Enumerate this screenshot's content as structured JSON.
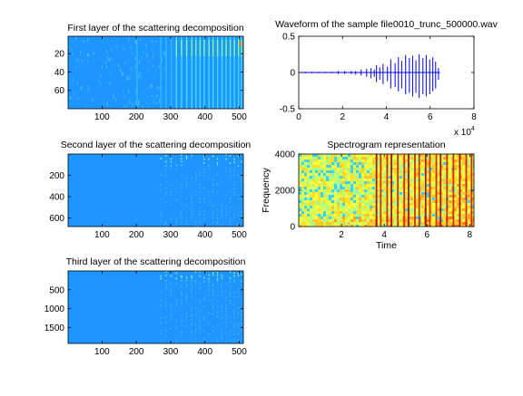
{
  "figure": {
    "background": "#ffffff"
  },
  "chart_data": [
    {
      "type": "heatmap",
      "title": "First layer of the scattering decomposition",
      "xticks": [
        "100",
        "200",
        "300",
        "400",
        "500"
      ],
      "yticks": [
        "20",
        "40",
        "60"
      ],
      "xlim": [
        1,
        512
      ],
      "ylim": [
        1,
        80
      ],
      "y_reversed": true,
      "base_color": "#1e96ff",
      "description_colors": [
        "#1e96ff",
        "#50e0ff",
        "#a0ff60",
        "#ff4000"
      ]
    },
    {
      "type": "line",
      "title": "Waveform of the sample file0010_trunc_500000.wav",
      "xticks": [
        "0",
        "2",
        "4",
        "6",
        "8"
      ],
      "yticks": [
        "0.5",
        "0",
        "-0.5"
      ],
      "x_multiplier": "x 10",
      "x_multiplier_exp": "4",
      "xlim": [
        0,
        80000
      ],
      "ylim": [
        -0.5,
        0.5
      ],
      "line_color": "#0000ff"
    },
    {
      "type": "heatmap",
      "title": "Second layer of the scattering decomposition",
      "xticks": [
        "100",
        "200",
        "300",
        "400",
        "500"
      ],
      "yticks": [
        "200",
        "400",
        "600"
      ],
      "xlim": [
        1,
        512
      ],
      "ylim": [
        1,
        680
      ],
      "y_reversed": true,
      "base_color": "#1e96ff"
    },
    {
      "type": "heatmap",
      "title": "Spectrogram representation",
      "xticks": [
        "2",
        "4",
        "6",
        "8"
      ],
      "yticks": [
        "4000",
        "2000",
        "0"
      ],
      "xlabel": "Time",
      "ylabel": "Frequency",
      "xlim": [
        0,
        8.2
      ],
      "ylim": [
        0,
        4000
      ],
      "colormap": "jet"
    },
    {
      "type": "heatmap",
      "title": "Third layer of the scattering decomposition",
      "xticks": [
        "100",
        "200",
        "300",
        "400",
        "500"
      ],
      "yticks": [
        "500",
        "1000",
        "1500"
      ],
      "xlim": [
        1,
        512
      ],
      "ylim": [
        1,
        1920
      ],
      "y_reversed": true,
      "base_color": "#1e96ff"
    }
  ]
}
